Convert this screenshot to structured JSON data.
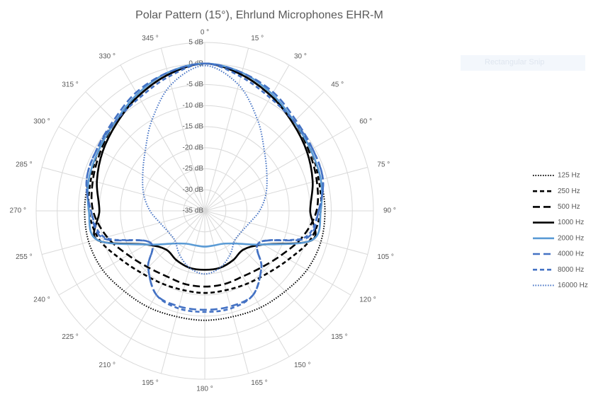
{
  "chart_data": {
    "type": "polar",
    "title": "Polar Pattern (15°), Ehrlund Microphones EHR-M",
    "categories": [
      "0 °",
      "15 °",
      "30 °",
      "45 °",
      "60 °",
      "75 °",
      "90 °",
      "105 °",
      "120 °",
      "135 °",
      "150 °",
      "165 °",
      "180 °",
      "195 °",
      "210 °",
      "225 °",
      "240 °",
      "255 °",
      "270 °",
      "285 °",
      "300 °",
      "315 °",
      "330 °",
      "345 °"
    ],
    "rlim": [
      -35,
      5
    ],
    "rticks": [
      {
        "value": -35,
        "label": "-35 dB"
      },
      {
        "value": -30,
        "label": "-30 dB"
      },
      {
        "value": -25,
        "label": "-25 dB"
      },
      {
        "value": -20,
        "label": "-20 dB"
      },
      {
        "value": -15,
        "label": "-15 dB"
      },
      {
        "value": -10,
        "label": "-10 dB"
      },
      {
        "value": -5,
        "label": "-5 dB"
      },
      {
        "value": 0,
        "label": "0 dB"
      },
      {
        "value": 5,
        "label": "5 dB"
      }
    ],
    "grid": true,
    "legend": "right",
    "series": [
      {
        "name": "125 Hz",
        "color": "#000000",
        "dash": "dot",
        "values": [
          0,
          -1.5,
          -3.5,
          -5,
          -6,
          -6.5,
          -6.5,
          -6.5,
          -7,
          -8,
          -8.5,
          -9,
          -9,
          -9,
          -8.5,
          -8,
          -7,
          -6.5,
          -6.5,
          -6.5,
          -6,
          -5,
          -3.5,
          -1.5
        ]
      },
      {
        "name": "250 Hz",
        "color": "#000000",
        "dash": "dash",
        "values": [
          0,
          -1.5,
          -3.5,
          -5,
          -6,
          -7,
          -7.5,
          -9,
          -12,
          -14,
          -15,
          -15.5,
          -15.5,
          -15.5,
          -15,
          -14,
          -12,
          -9,
          -7.5,
          -7,
          -6,
          -5,
          -3.5,
          -1.5
        ]
      },
      {
        "name": "500 Hz",
        "color": "#000000",
        "dash": "longdash",
        "values": [
          0,
          -1.5,
          -3.5,
          -5,
          -6.5,
          -7.5,
          -8.5,
          -11,
          -14,
          -16,
          -17,
          -17,
          -17,
          -17,
          -17,
          -16,
          -14,
          -11,
          -8.5,
          -7.5,
          -6.5,
          -5,
          -3.5,
          -1.5
        ]
      },
      {
        "name": "1000 Hz",
        "color": "#000000",
        "dash": "solid",
        "values": [
          0,
          -1.5,
          -3.5,
          -5.5,
          -7,
          -8.5,
          -10,
          -8.5,
          -19,
          -22,
          -21.5,
          -21,
          -21,
          -21,
          -21.5,
          -22,
          -19,
          -8.5,
          -10,
          -8.5,
          -7,
          -5.5,
          -3.5,
          -1.5
        ]
      },
      {
        "name": "2000 Hz",
        "color": "#5b9bd5",
        "dash": "solid",
        "values": [
          0,
          -1,
          -3,
          -5,
          -6,
          -6.5,
          -7.5,
          -8.5,
          -19,
          -24,
          -26,
          -26.5,
          -26.5,
          -26.5,
          -26,
          -24,
          -19,
          -8.5,
          -7.5,
          -6.5,
          -6,
          -5,
          -3,
          -1
        ]
      },
      {
        "name": "4000 Hz",
        "color": "#4472c4",
        "dash": "longdash",
        "values": [
          0,
          -1,
          -2.5,
          -4.5,
          -5.5,
          -6,
          -8,
          -10,
          -20,
          -16,
          -12,
          -11.5,
          -11.5,
          -11.5,
          -12,
          -16,
          -20,
          -10,
          -8,
          -6,
          -5.5,
          -4.5,
          -2.5,
          -1
        ]
      },
      {
        "name": "8000 Hz",
        "color": "#4472c4",
        "dash": "dash",
        "values": [
          0,
          -2,
          -4,
          -5,
          -5.5,
          -6,
          -8,
          -10.5,
          -20,
          -16,
          -12,
          -11,
          -11,
          -11,
          -12,
          -16,
          -20,
          -10.5,
          -8,
          -6,
          -5.5,
          -5,
          -4,
          -2
        ]
      },
      {
        "name": "16000 Hz",
        "color": "#4472c4",
        "dash": "dot",
        "values": [
          -0.5,
          -4,
          -10,
          -15,
          -18,
          -20,
          -22,
          -24,
          -25,
          -25,
          -23,
          -21,
          -20,
          -21,
          -23,
          -25,
          -25,
          -24,
          -22,
          -20,
          -18,
          -15,
          -10,
          -4
        ]
      }
    ]
  },
  "overlay_label": "Rectangular Snip"
}
